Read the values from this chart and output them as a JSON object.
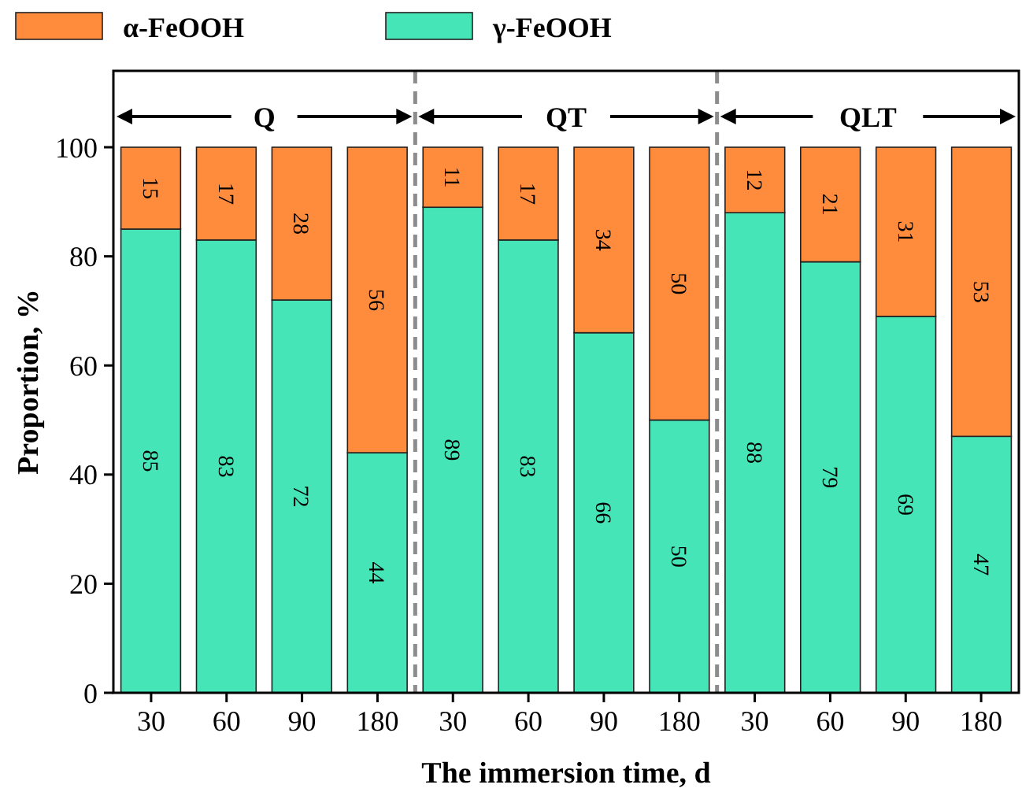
{
  "chart_data": {
    "type": "bar",
    "stacked": true,
    "xlabel": "The immersion time, d",
    "ylabel": "Proportion, %",
    "categories": [
      "30",
      "60",
      "90",
      "180",
      "30",
      "60",
      "90",
      "180",
      "30",
      "60",
      "90",
      "180"
    ],
    "series": [
      {
        "name": "γ-FeOOH",
        "color": "#45e5b8",
        "values": [
          85,
          83,
          72,
          44,
          89,
          83,
          66,
          50,
          88,
          79,
          69,
          47
        ]
      },
      {
        "name": "α-FeOOH",
        "color": "#ff8b3d",
        "values": [
          15,
          17,
          28,
          56,
          11,
          17,
          34,
          50,
          12,
          21,
          31,
          53
        ]
      }
    ],
    "ylim": [
      0,
      114
    ],
    "yticks": [
      0,
      20,
      40,
      60,
      80,
      100
    ],
    "data_labels": true,
    "legend": "top left",
    "grid": false,
    "annotations": [
      "Q",
      "QT",
      "QLT"
    ]
  }
}
